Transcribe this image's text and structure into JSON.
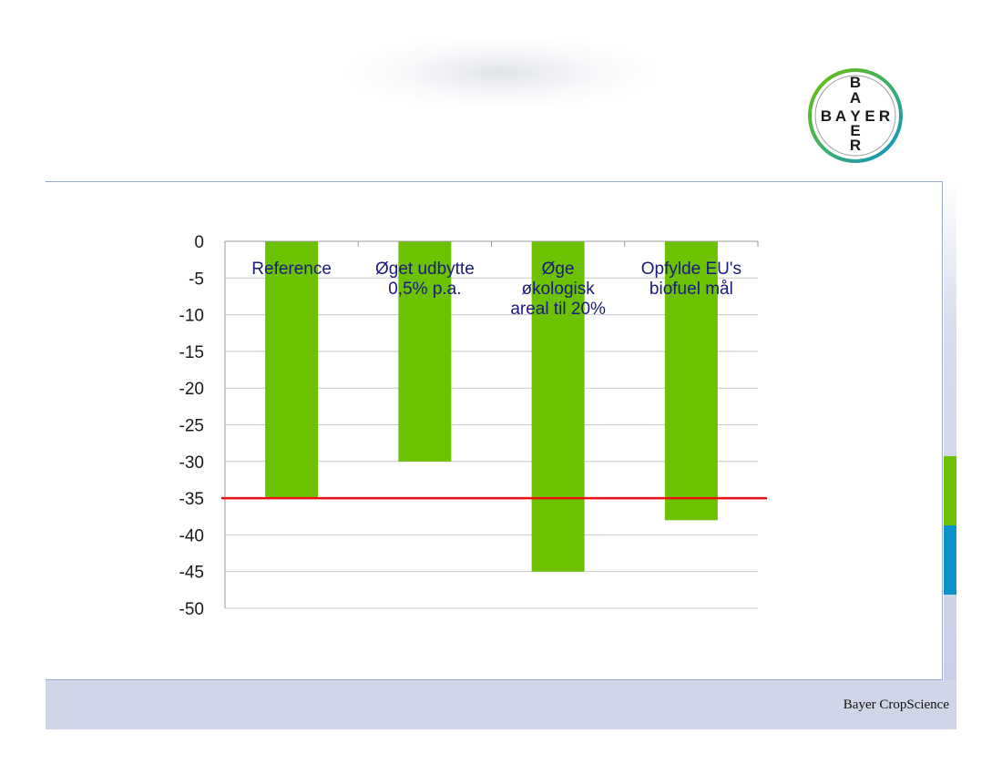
{
  "brand": {
    "logo_letters_vertical": [
      "B",
      "A",
      "Y",
      "E",
      "R"
    ],
    "logo_letters_horizontal": [
      "B",
      "A",
      "Y",
      "E",
      "R"
    ],
    "footer_text": "Bayer CropScience",
    "colors": {
      "bar": "#6cc100",
      "reference_line": "#e81010",
      "side_green": "#6cc100",
      "side_blue": "#0b93c9",
      "label_text": "#1a1a7a",
      "grid": "#c8c8c8"
    }
  },
  "chart_data": {
    "type": "bar",
    "categories": [
      [
        "Reference"
      ],
      [
        "Øget udbytte",
        "0,5% p.a."
      ],
      [
        "Øge",
        "økologisk",
        "areal til 20%"
      ],
      [
        "Opfylde EU's",
        "biofuel mål"
      ]
    ],
    "values": [
      -35,
      -30,
      -45,
      -38
    ],
    "reference_line": -35,
    "ylim": [
      -50,
      0
    ],
    "yticks": [
      "0",
      "-5",
      "-10",
      "-15",
      "-20",
      "-25",
      "-30",
      "-35",
      "-40",
      "-45",
      "-50"
    ],
    "title": "",
    "xlabel": "",
    "ylabel": "",
    "grid": true,
    "legend": "none"
  }
}
